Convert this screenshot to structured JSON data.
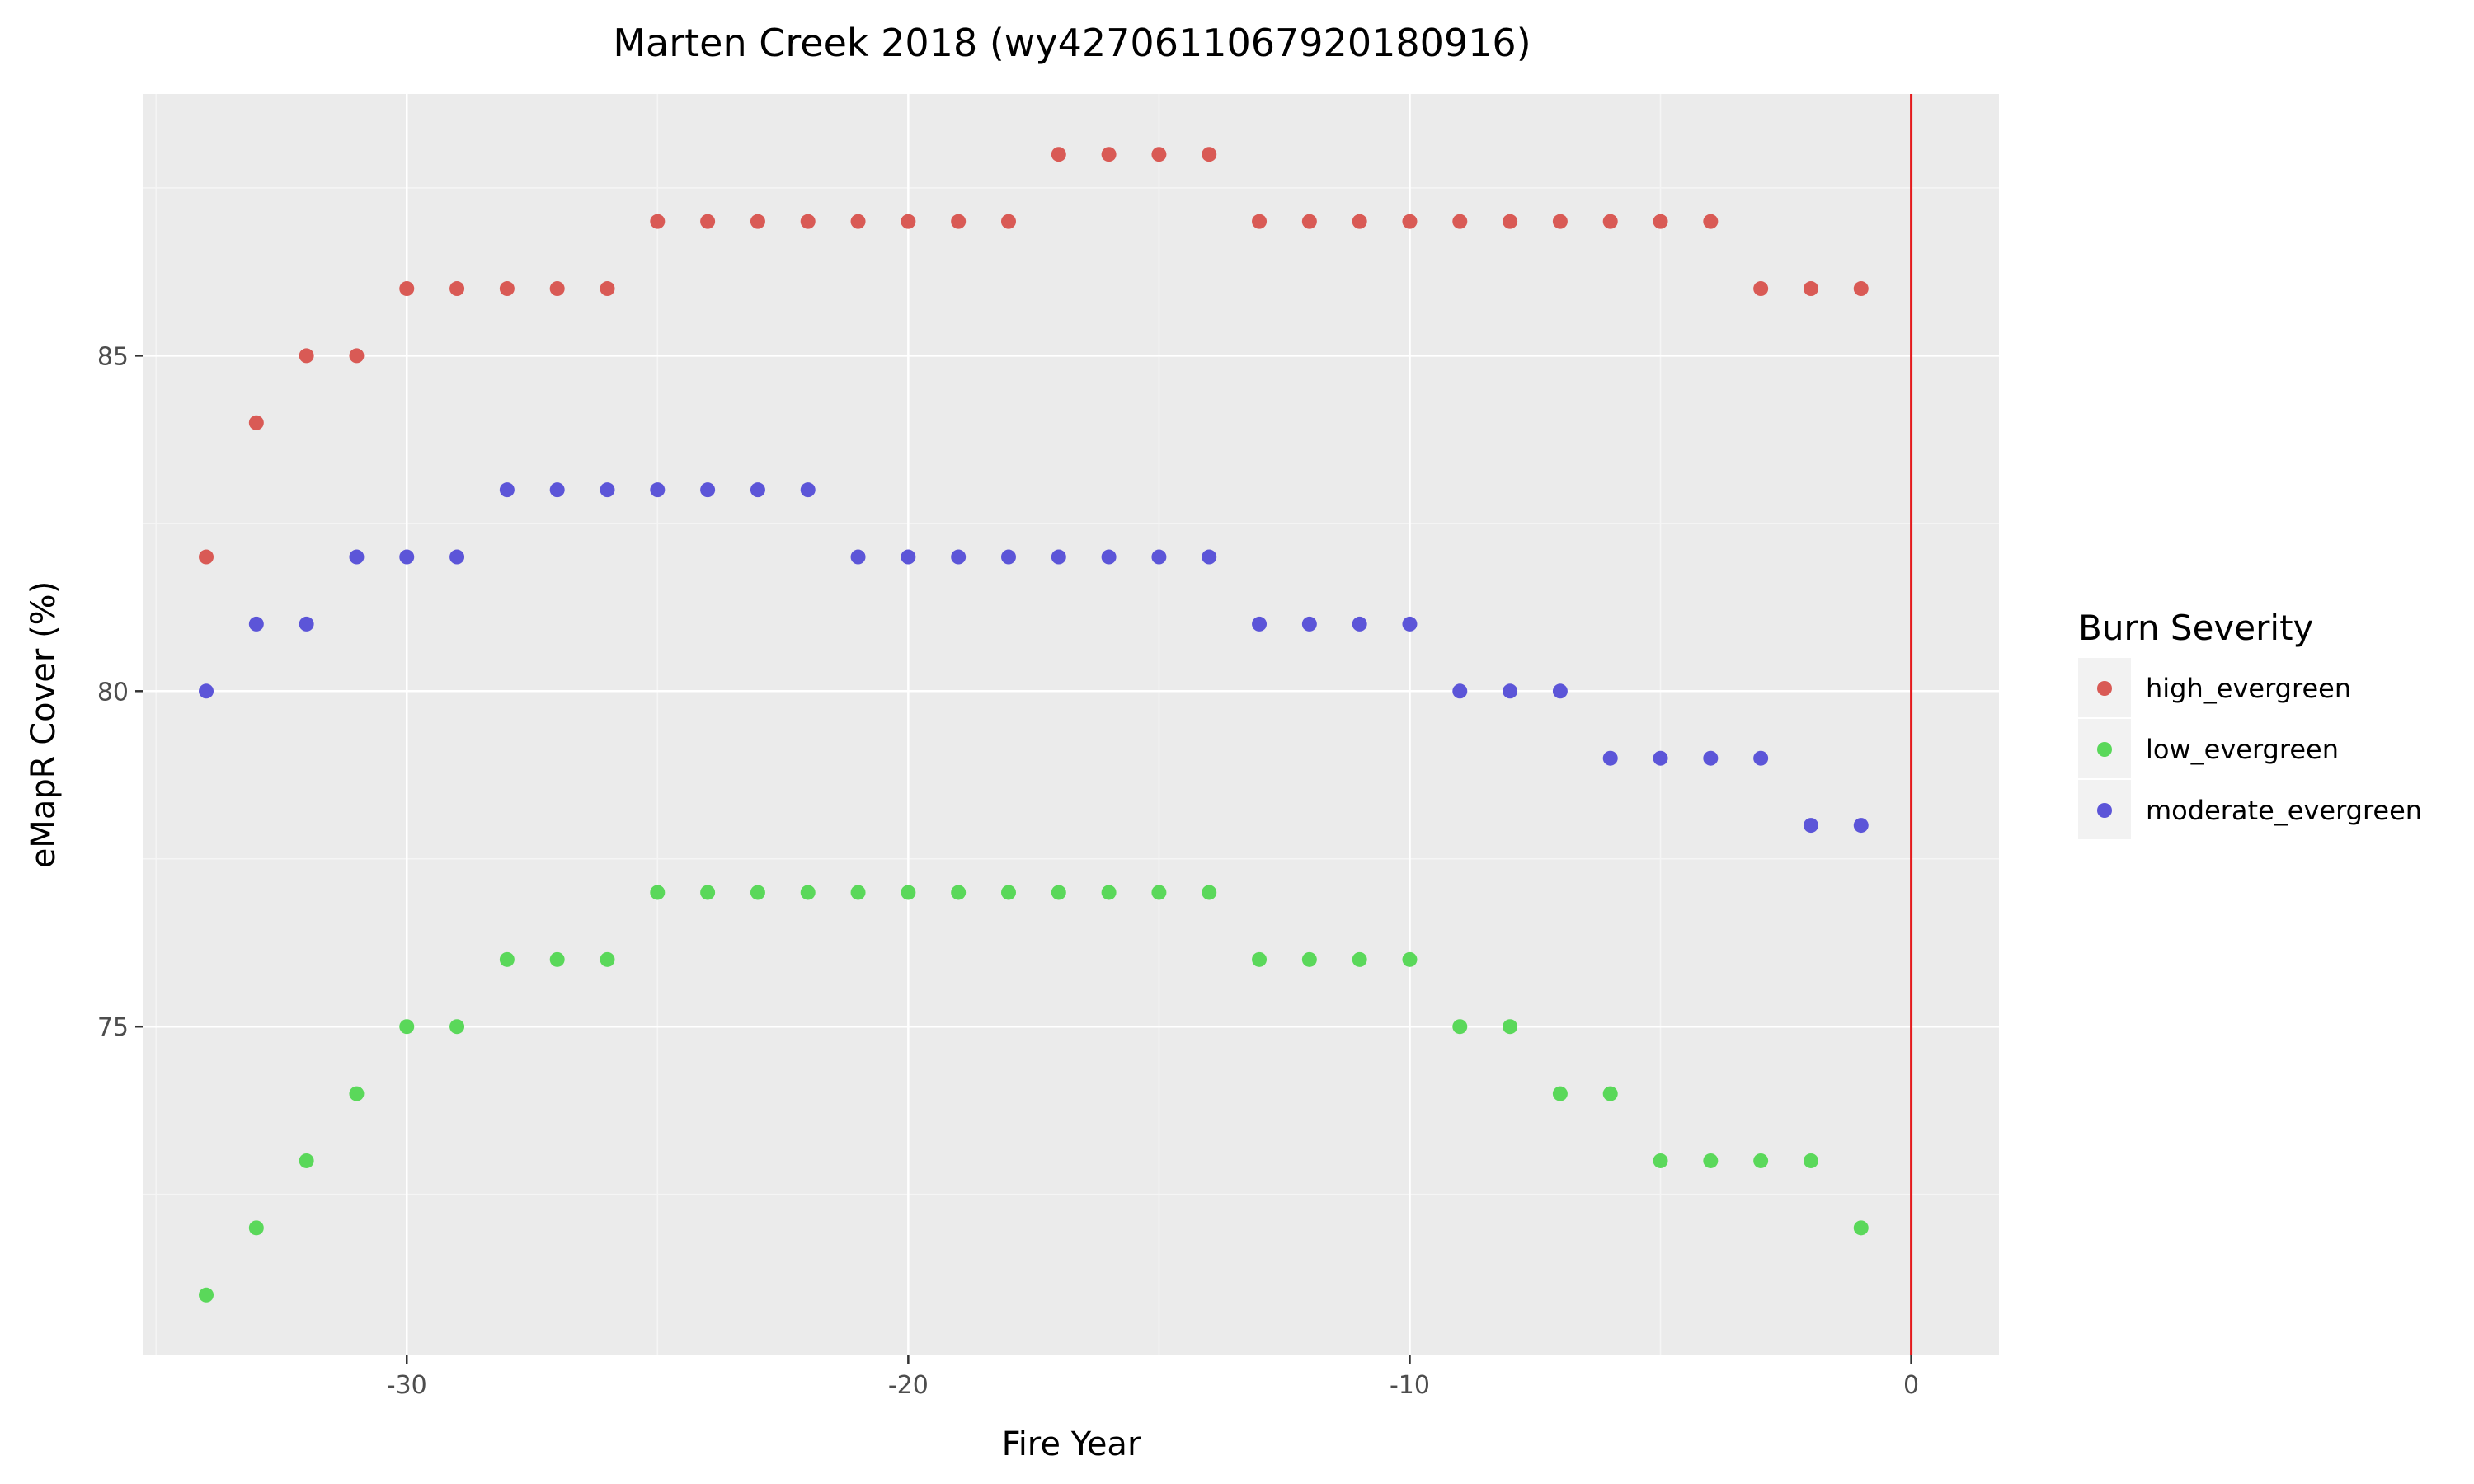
{
  "chart_data": {
    "type": "scatter",
    "title": "Marten Creek 2018 (wy4270611067920180916)",
    "xlabel": "Fire Year",
    "ylabel": "eMapR Cover (%)",
    "xlim": [
      -35.25,
      1.75
    ],
    "ylim": [
      70.1,
      88.9
    ],
    "x_ticks": [
      -30,
      -20,
      -10,
      0
    ],
    "y_ticks": [
      75,
      80,
      85
    ],
    "grid": true,
    "reference_line": {
      "x": 0,
      "color": "#e41a1c"
    },
    "legend": {
      "title": "Burn Severity",
      "placement": "right"
    },
    "series": [
      {
        "name": "high_evergreen",
        "color": "#d95a55",
        "x": [
          -34,
          -33,
          -32,
          -31,
          -30,
          -29,
          -28,
          -27,
          -26,
          -25,
          -24,
          -23,
          -22,
          -21,
          -20,
          -19,
          -18,
          -17,
          -16,
          -15,
          -14,
          -13,
          -12,
          -11,
          -10,
          -9,
          -8,
          -7,
          -6,
          -5,
          -4,
          -3,
          -2,
          -1
        ],
        "values": [
          82,
          84,
          85,
          85,
          86,
          86,
          86,
          86,
          86,
          87,
          87,
          87,
          87,
          87,
          87,
          87,
          87,
          88,
          88,
          88,
          88,
          87,
          87,
          87,
          87,
          87,
          87,
          87,
          87,
          87,
          87,
          86,
          86,
          86
        ]
      },
      {
        "name": "low_evergreen",
        "color": "#5ad85a",
        "x": [
          -34,
          -33,
          -32,
          -31,
          -30,
          -29,
          -28,
          -27,
          -26,
          -25,
          -24,
          -23,
          -22,
          -21,
          -20,
          -19,
          -18,
          -17,
          -16,
          -15,
          -14,
          -13,
          -12,
          -11,
          -10,
          -9,
          -8,
          -7,
          -6,
          -5,
          -4,
          -3,
          -2,
          -1
        ],
        "values": [
          71,
          72,
          73,
          74,
          75,
          75,
          76,
          76,
          76,
          77,
          77,
          77,
          77,
          77,
          77,
          77,
          77,
          77,
          77,
          77,
          77,
          76,
          76,
          76,
          76,
          75,
          75,
          74,
          74,
          73,
          73,
          73,
          73,
          72
        ]
      },
      {
        "name": "moderate_evergreen",
        "color": "#5c55d8",
        "x": [
          -34,
          -33,
          -32,
          -31,
          -30,
          -29,
          -28,
          -27,
          -26,
          -25,
          -24,
          -23,
          -22,
          -21,
          -20,
          -19,
          -18,
          -17,
          -16,
          -15,
          -14,
          -13,
          -12,
          -11,
          -10,
          -9,
          -8,
          -7,
          -6,
          -5,
          -4,
          -3,
          -2,
          -1
        ],
        "values": [
          80,
          81,
          81,
          82,
          82,
          82,
          83,
          83,
          83,
          83,
          83,
          83,
          83,
          82,
          82,
          82,
          82,
          82,
          82,
          82,
          82,
          81,
          81,
          81,
          81,
          80,
          80,
          80,
          79,
          79,
          79,
          79,
          78,
          78
        ]
      }
    ]
  }
}
